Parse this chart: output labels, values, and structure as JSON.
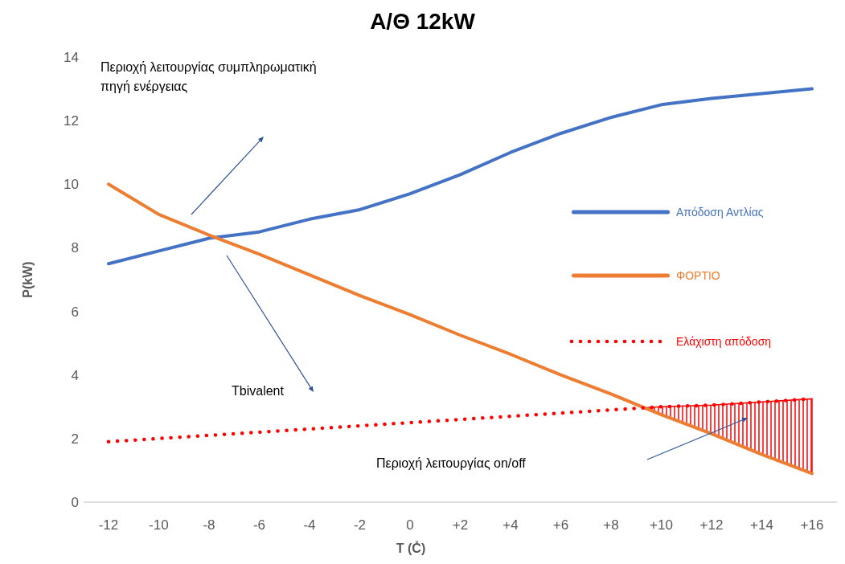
{
  "chart_data": {
    "type": "line",
    "title": "Α/Θ 12kW",
    "xlabel": "T (C̊)",
    "ylabel": "P(kW)",
    "categories": [
      "-12",
      "-10",
      "-8",
      "-6",
      "-4",
      "-2",
      "0",
      "+2",
      "+4",
      "+6",
      "+8",
      "+10",
      "+12",
      "+14",
      "+16"
    ],
    "series": [
      {
        "name": "Απόδοση Αντλίας",
        "color": "#4472c4",
        "line_style": "solid",
        "values": [
          7.5,
          7.9,
          8.3,
          8.5,
          8.9,
          9.2,
          9.7,
          10.3,
          11.0,
          11.6,
          12.1,
          12.5,
          12.7,
          12.85,
          13.0
        ]
      },
      {
        "name": "ΦΟΡΤΙΟ",
        "color": "#ed7d31",
        "line_style": "solid",
        "values": [
          10.0,
          9.05,
          8.4,
          7.8,
          7.15,
          6.5,
          5.9,
          5.25,
          4.65,
          4.0,
          3.4,
          2.75,
          2.15,
          1.5,
          0.9
        ]
      },
      {
        "name": "Ελάχιστη απόδοση",
        "color": "#ff0000",
        "line_style": "dotted",
        "values": [
          1.9,
          2.0,
          2.1,
          2.2,
          2.3,
          2.4,
          2.5,
          2.6,
          2.7,
          2.8,
          2.9,
          3.0,
          3.05,
          3.15,
          3.25
        ]
      }
    ],
    "ylim": [
      0,
      14
    ],
    "yticks": [
      0,
      2,
      4,
      6,
      8,
      10,
      12,
      14
    ],
    "grid": false,
    "legend": "right",
    "marker": "none",
    "annotations": [
      "Περιοχή λειτουργίας συμπληρωματική πηγή ενέργειας",
      "Tbivalent",
      "Περιοχή λειτουργίας on/off"
    ]
  }
}
